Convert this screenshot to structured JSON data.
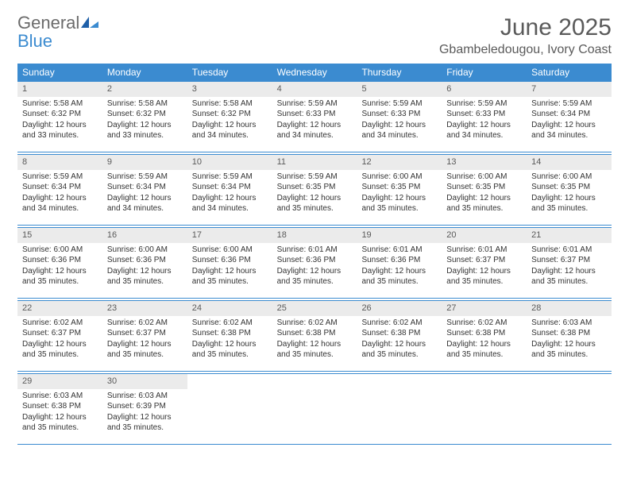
{
  "logo": {
    "text1": "General",
    "text2": "Blue"
  },
  "title": "June 2025",
  "location": "Gbambeledougou, Ivory Coast",
  "colors": {
    "header_bg": "#3b8bd0",
    "header_text": "#ffffff",
    "rule": "#3b8bd0",
    "daynum_bg": "#ebebeb",
    "text": "#333333",
    "title_text": "#5a5a5a"
  },
  "day_headers": [
    "Sunday",
    "Monday",
    "Tuesday",
    "Wednesday",
    "Thursday",
    "Friday",
    "Saturday"
  ],
  "weeks": [
    [
      {
        "n": "1",
        "sr": "Sunrise: 5:58 AM",
        "ss": "Sunset: 6:32 PM",
        "dl": "Daylight: 12 hours and 33 minutes."
      },
      {
        "n": "2",
        "sr": "Sunrise: 5:58 AM",
        "ss": "Sunset: 6:32 PM",
        "dl": "Daylight: 12 hours and 33 minutes."
      },
      {
        "n": "3",
        "sr": "Sunrise: 5:58 AM",
        "ss": "Sunset: 6:32 PM",
        "dl": "Daylight: 12 hours and 34 minutes."
      },
      {
        "n": "4",
        "sr": "Sunrise: 5:59 AM",
        "ss": "Sunset: 6:33 PM",
        "dl": "Daylight: 12 hours and 34 minutes."
      },
      {
        "n": "5",
        "sr": "Sunrise: 5:59 AM",
        "ss": "Sunset: 6:33 PM",
        "dl": "Daylight: 12 hours and 34 minutes."
      },
      {
        "n": "6",
        "sr": "Sunrise: 5:59 AM",
        "ss": "Sunset: 6:33 PM",
        "dl": "Daylight: 12 hours and 34 minutes."
      },
      {
        "n": "7",
        "sr": "Sunrise: 5:59 AM",
        "ss": "Sunset: 6:34 PM",
        "dl": "Daylight: 12 hours and 34 minutes."
      }
    ],
    [
      {
        "n": "8",
        "sr": "Sunrise: 5:59 AM",
        "ss": "Sunset: 6:34 PM",
        "dl": "Daylight: 12 hours and 34 minutes."
      },
      {
        "n": "9",
        "sr": "Sunrise: 5:59 AM",
        "ss": "Sunset: 6:34 PM",
        "dl": "Daylight: 12 hours and 34 minutes."
      },
      {
        "n": "10",
        "sr": "Sunrise: 5:59 AM",
        "ss": "Sunset: 6:34 PM",
        "dl": "Daylight: 12 hours and 34 minutes."
      },
      {
        "n": "11",
        "sr": "Sunrise: 5:59 AM",
        "ss": "Sunset: 6:35 PM",
        "dl": "Daylight: 12 hours and 35 minutes."
      },
      {
        "n": "12",
        "sr": "Sunrise: 6:00 AM",
        "ss": "Sunset: 6:35 PM",
        "dl": "Daylight: 12 hours and 35 minutes."
      },
      {
        "n": "13",
        "sr": "Sunrise: 6:00 AM",
        "ss": "Sunset: 6:35 PM",
        "dl": "Daylight: 12 hours and 35 minutes."
      },
      {
        "n": "14",
        "sr": "Sunrise: 6:00 AM",
        "ss": "Sunset: 6:35 PM",
        "dl": "Daylight: 12 hours and 35 minutes."
      }
    ],
    [
      {
        "n": "15",
        "sr": "Sunrise: 6:00 AM",
        "ss": "Sunset: 6:36 PM",
        "dl": "Daylight: 12 hours and 35 minutes."
      },
      {
        "n": "16",
        "sr": "Sunrise: 6:00 AM",
        "ss": "Sunset: 6:36 PM",
        "dl": "Daylight: 12 hours and 35 minutes."
      },
      {
        "n": "17",
        "sr": "Sunrise: 6:00 AM",
        "ss": "Sunset: 6:36 PM",
        "dl": "Daylight: 12 hours and 35 minutes."
      },
      {
        "n": "18",
        "sr": "Sunrise: 6:01 AM",
        "ss": "Sunset: 6:36 PM",
        "dl": "Daylight: 12 hours and 35 minutes."
      },
      {
        "n": "19",
        "sr": "Sunrise: 6:01 AM",
        "ss": "Sunset: 6:36 PM",
        "dl": "Daylight: 12 hours and 35 minutes."
      },
      {
        "n": "20",
        "sr": "Sunrise: 6:01 AM",
        "ss": "Sunset: 6:37 PM",
        "dl": "Daylight: 12 hours and 35 minutes."
      },
      {
        "n": "21",
        "sr": "Sunrise: 6:01 AM",
        "ss": "Sunset: 6:37 PM",
        "dl": "Daylight: 12 hours and 35 minutes."
      }
    ],
    [
      {
        "n": "22",
        "sr": "Sunrise: 6:02 AM",
        "ss": "Sunset: 6:37 PM",
        "dl": "Daylight: 12 hours and 35 minutes."
      },
      {
        "n": "23",
        "sr": "Sunrise: 6:02 AM",
        "ss": "Sunset: 6:37 PM",
        "dl": "Daylight: 12 hours and 35 minutes."
      },
      {
        "n": "24",
        "sr": "Sunrise: 6:02 AM",
        "ss": "Sunset: 6:38 PM",
        "dl": "Daylight: 12 hours and 35 minutes."
      },
      {
        "n": "25",
        "sr": "Sunrise: 6:02 AM",
        "ss": "Sunset: 6:38 PM",
        "dl": "Daylight: 12 hours and 35 minutes."
      },
      {
        "n": "26",
        "sr": "Sunrise: 6:02 AM",
        "ss": "Sunset: 6:38 PM",
        "dl": "Daylight: 12 hours and 35 minutes."
      },
      {
        "n": "27",
        "sr": "Sunrise: 6:02 AM",
        "ss": "Sunset: 6:38 PM",
        "dl": "Daylight: 12 hours and 35 minutes."
      },
      {
        "n": "28",
        "sr": "Sunrise: 6:03 AM",
        "ss": "Sunset: 6:38 PM",
        "dl": "Daylight: 12 hours and 35 minutes."
      }
    ],
    [
      {
        "n": "29",
        "sr": "Sunrise: 6:03 AM",
        "ss": "Sunset: 6:38 PM",
        "dl": "Daylight: 12 hours and 35 minutes."
      },
      {
        "n": "30",
        "sr": "Sunrise: 6:03 AM",
        "ss": "Sunset: 6:39 PM",
        "dl": "Daylight: 12 hours and 35 minutes."
      },
      {
        "empty": true
      },
      {
        "empty": true
      },
      {
        "empty": true
      },
      {
        "empty": true
      },
      {
        "empty": true
      }
    ]
  ]
}
